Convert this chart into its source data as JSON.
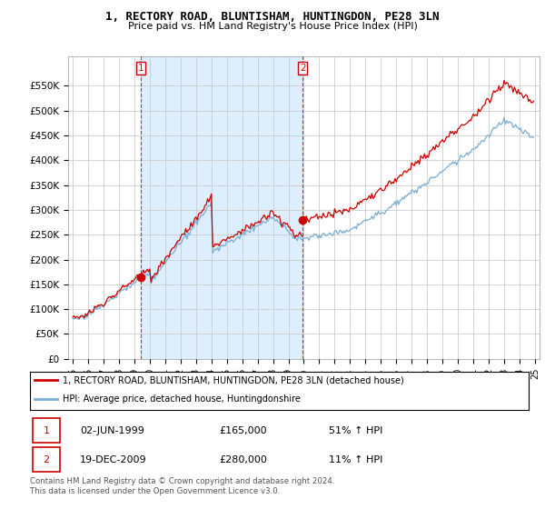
{
  "title": "1, RECTORY ROAD, BLUNTISHAM, HUNTINGDON, PE28 3LN",
  "subtitle": "Price paid vs. HM Land Registry's House Price Index (HPI)",
  "ylim": [
    0,
    600000
  ],
  "yticks": [
    0,
    50000,
    100000,
    150000,
    200000,
    250000,
    300000,
    350000,
    400000,
    450000,
    500000,
    550000
  ],
  "ytick_labels": [
    "£0",
    "£50K",
    "£100K",
    "£150K",
    "£200K",
    "£250K",
    "£300K",
    "£350K",
    "£400K",
    "£450K",
    "£500K",
    "£550K"
  ],
  "legend_line1": "1, RECTORY ROAD, BLUNTISHAM, HUNTINGDON, PE28 3LN (detached house)",
  "legend_line2": "HPI: Average price, detached house, Huntingdonshire",
  "sale1_date": "02-JUN-1999",
  "sale1_price": "£165,000",
  "sale1_hpi": "51% ↑ HPI",
  "sale2_date": "19-DEC-2009",
  "sale2_price": "£280,000",
  "sale2_hpi": "11% ↑ HPI",
  "footer": "Contains HM Land Registry data © Crown copyright and database right 2024.\nThis data is licensed under the Open Government Licence v3.0.",
  "sale_line_color": "#cc0000",
  "hpi_line_color": "#7aadd4",
  "shade_color": "#ddeeff",
  "grid_color": "#cccccc",
  "background_color": "#ffffff"
}
